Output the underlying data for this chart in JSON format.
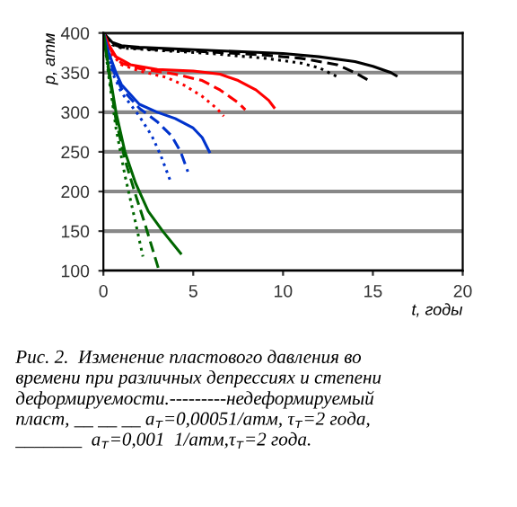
{
  "chart_data": {
    "type": "line",
    "xlabel": "t, годы",
    "ylabel": "p, атм",
    "xlim": [
      0,
      20
    ],
    "xticks": [
      0,
      5,
      10,
      15,
      20
    ],
    "ylim": [
      100,
      400
    ],
    "yticks": [
      100,
      150,
      200,
      250,
      300,
      350,
      400
    ],
    "grid": "y",
    "series": [
      {
        "color": "#000000",
        "line_style": "solid",
        "x": [
          0,
          0.5,
          1,
          2,
          5,
          8,
          10,
          12,
          14,
          15,
          16,
          16.3
        ],
        "values": [
          400,
          388,
          384,
          382,
          379,
          376,
          374,
          370,
          364,
          358,
          350,
          346
        ]
      },
      {
        "color": "#000000",
        "line_style": "dashed",
        "x": [
          0,
          0.5,
          1,
          3,
          6,
          9,
          11,
          13,
          14,
          14.7
        ],
        "values": [
          400,
          386,
          382,
          379,
          376,
          372,
          368,
          360,
          350,
          341
        ]
      },
      {
        "color": "#000000",
        "line_style": "dotted",
        "x": [
          0,
          0.5,
          1,
          3,
          6,
          9,
          11,
          12,
          13
        ],
        "values": [
          400,
          385,
          381,
          378,
          374,
          368,
          362,
          356,
          345
        ]
      },
      {
        "color": "#ff0000",
        "line_style": "solid",
        "x": [
          0,
          0.3,
          0.7,
          1.5,
          3,
          5,
          6.5,
          7.5,
          8.5,
          9.2,
          9.5
        ],
        "values": [
          400,
          385,
          370,
          360,
          354,
          352,
          348,
          340,
          328,
          315,
          306
        ]
      },
      {
        "color": "#ff0000",
        "line_style": "dashed",
        "x": [
          0,
          0.5,
          1,
          2,
          4,
          5.5,
          6.5,
          7.5,
          7.9
        ],
        "values": [
          400,
          375,
          362,
          355,
          348,
          340,
          328,
          312,
          303
        ]
      },
      {
        "color": "#ff0000",
        "line_style": "dotted",
        "x": [
          0,
          0.5,
          1,
          2,
          3.5,
          4.5,
          5.5,
          6.3,
          6.7
        ],
        "values": [
          400,
          372,
          360,
          352,
          344,
          334,
          320,
          305,
          295
        ]
      },
      {
        "color": "#0033cc",
        "line_style": "solid",
        "x": [
          0,
          0.3,
          0.7,
          1,
          2,
          3,
          4,
          5,
          5.5,
          5.9
        ],
        "values": [
          400,
          375,
          350,
          335,
          310,
          300,
          292,
          280,
          268,
          250
        ]
      },
      {
        "color": "#0033cc",
        "line_style": "dashed",
        "x": [
          0,
          0.5,
          1,
          2,
          3,
          3.8,
          4.3,
          4.7
        ],
        "values": [
          400,
          355,
          330,
          305,
          288,
          270,
          250,
          225
        ]
      },
      {
        "color": "#0033cc",
        "line_style": "dotted",
        "x": [
          0,
          0.5,
          1,
          2,
          2.7,
          3.2,
          3.7
        ],
        "values": [
          400,
          350,
          325,
          295,
          270,
          245,
          215
        ]
      },
      {
        "color": "#006600",
        "line_style": "solid",
        "x": [
          0,
          0.3,
          0.7,
          1.2,
          1.8,
          2.5,
          3.3,
          4.3
        ],
        "values": [
          400,
          355,
          300,
          250,
          210,
          175,
          150,
          122
        ]
      },
      {
        "color": "#006600",
        "line_style": "dashed",
        "x": [
          0,
          0.3,
          0.7,
          1.2,
          1.8,
          2.3,
          2.7,
          3.1
        ],
        "values": [
          400,
          350,
          290,
          240,
          195,
          160,
          130,
          100
        ]
      },
      {
        "color": "#006600",
        "line_style": "dotted",
        "x": [
          0,
          0.3,
          0.7,
          1.2,
          1.7,
          2.2
        ],
        "values": [
          400,
          345,
          280,
          220,
          170,
          118
        ]
      }
    ],
    "annotations": [
      "Рис. 2.  Изменение пластового давления во\nвремени при различных депрессиях и степени\nдеформируемости.---------недеформируемый\nпласт, __ __ __ a$_{т}$=0,00051/атм, τ$_{т}$=2 года,\n_______  a$_{т}$=0,001  1/атм,τ$_{т}$=2 года."
    ]
  }
}
